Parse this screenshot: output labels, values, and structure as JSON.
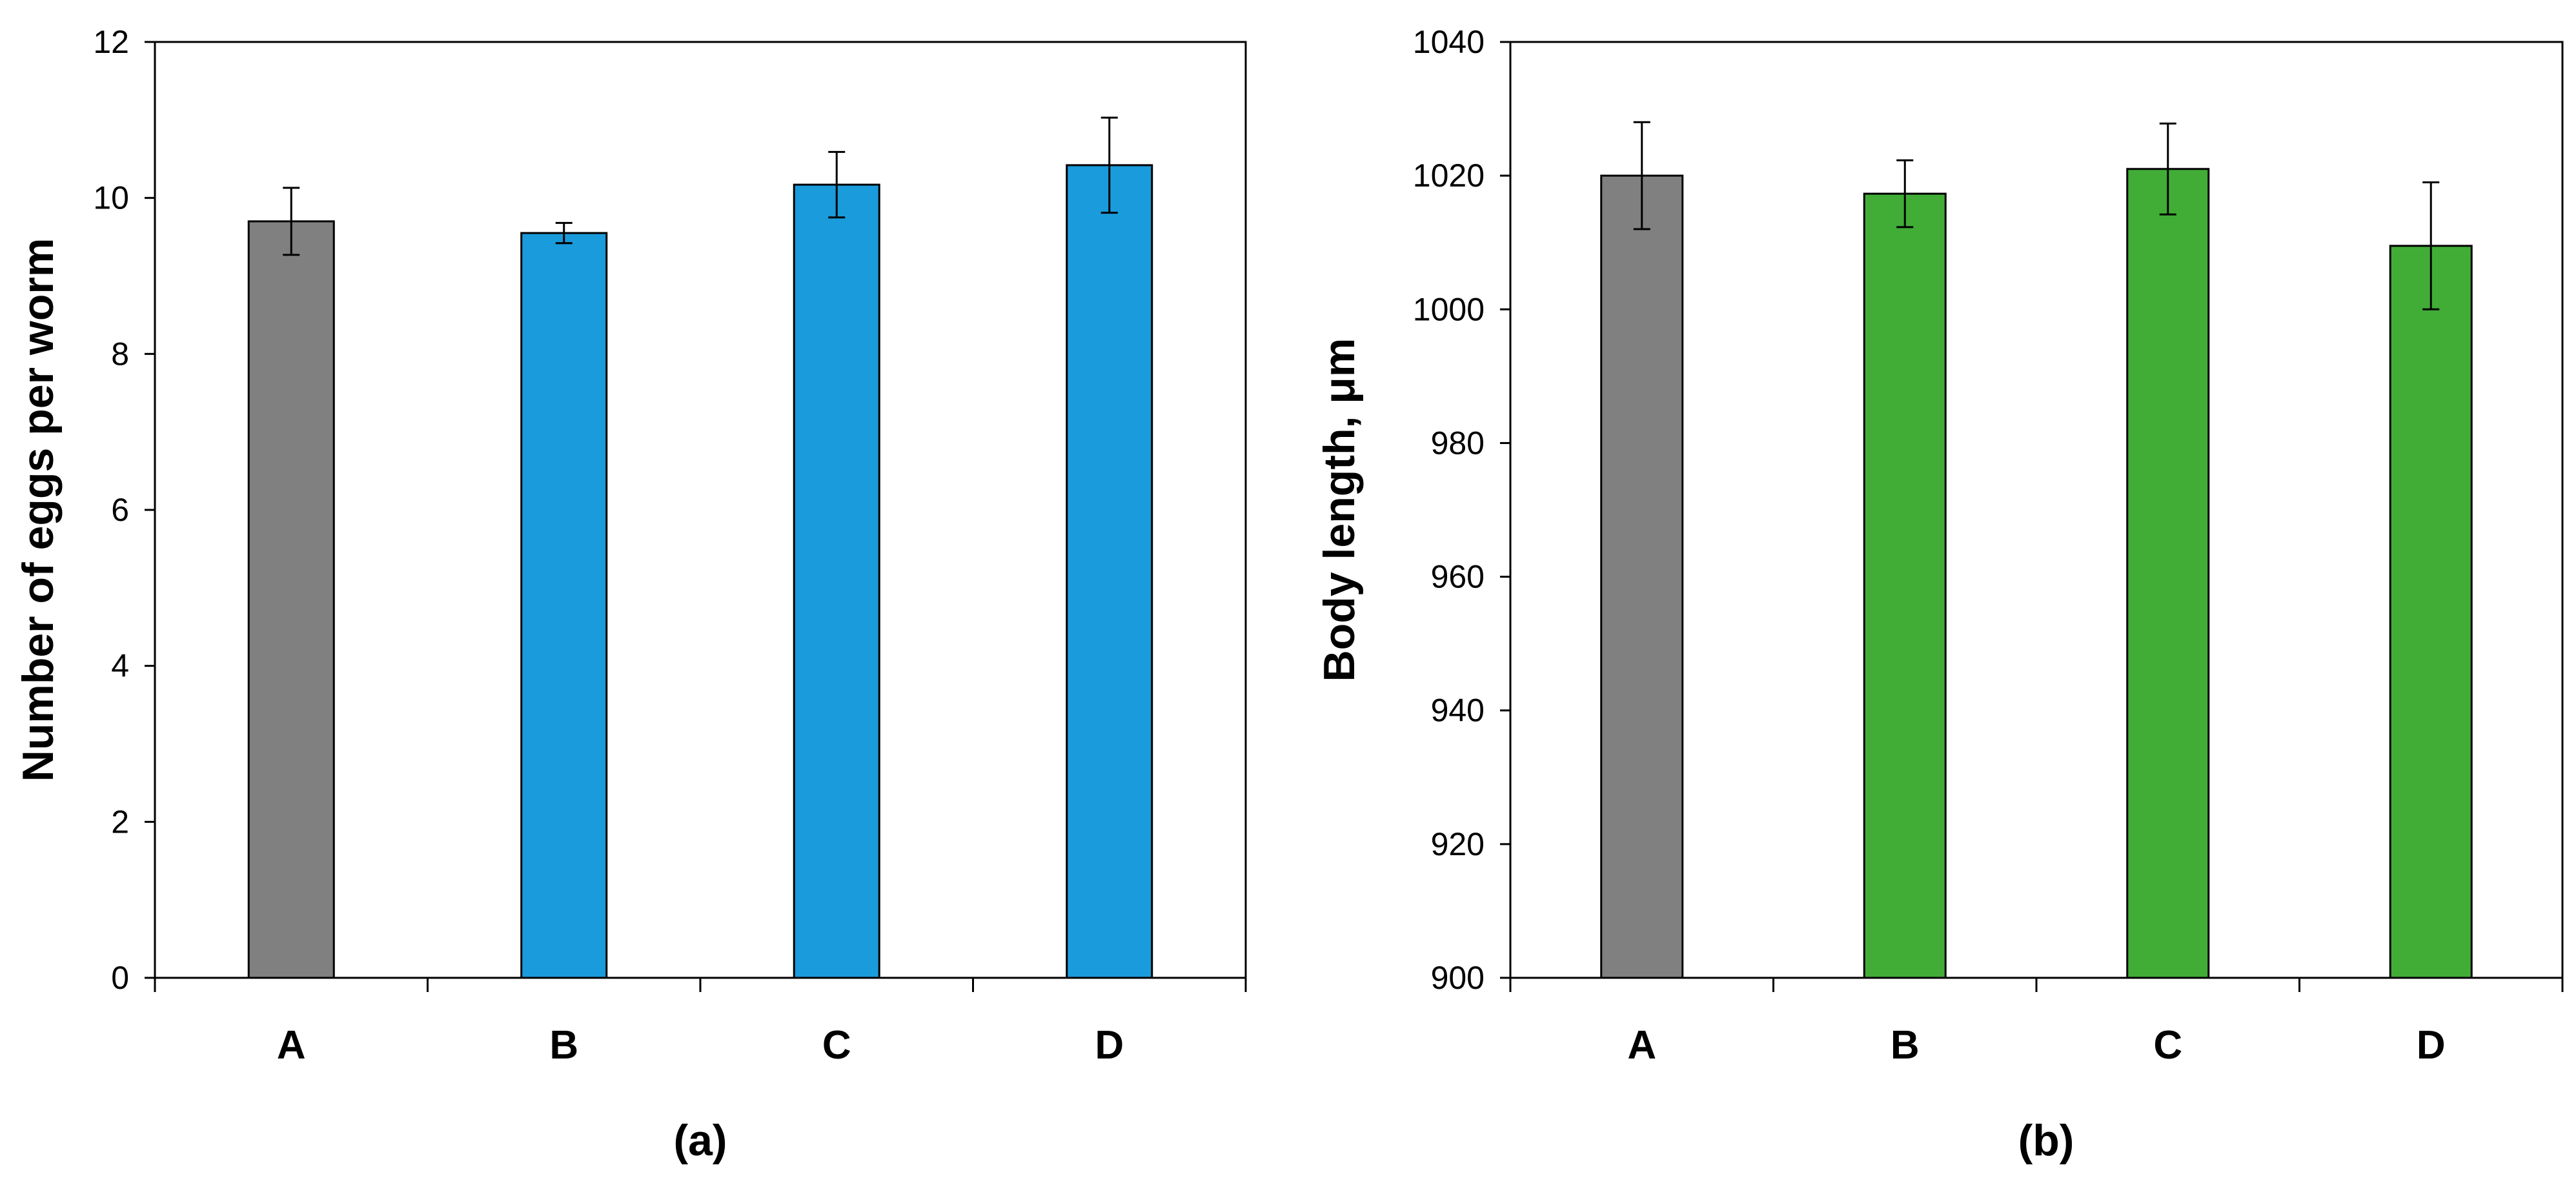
{
  "chart_data": [
    {
      "type": "bar",
      "panel_label": "(a)",
      "ylabel": "Number of eggs per worm",
      "categories": [
        "A",
        "B",
        "C",
        "D"
      ],
      "values": [
        9.7,
        9.55,
        10.17,
        10.42
      ],
      "errors": [
        0.43,
        0.13,
        0.42,
        0.61
      ],
      "colors": [
        "#808080",
        "#1a9bdb",
        "#1a9bdb",
        "#1a9bdb"
      ],
      "ylim": [
        0,
        12
      ],
      "yticks": [
        0,
        2,
        4,
        6,
        8,
        10,
        12
      ]
    },
    {
      "type": "bar",
      "panel_label": "(b)",
      "ylabel": "Body length, μm",
      "categories": [
        "A",
        "B",
        "C",
        "D"
      ],
      "values": [
        1020,
        1017.3,
        1021,
        1009.5
      ],
      "errors": [
        8,
        5,
        6.8,
        9.5
      ],
      "colors": [
        "#808080",
        "#41ad37",
        "#41ad37",
        "#41ad37"
      ],
      "ylim": [
        900,
        1040
      ],
      "yticks": [
        900,
        920,
        940,
        960,
        980,
        1000,
        1020,
        1040
      ]
    }
  ]
}
